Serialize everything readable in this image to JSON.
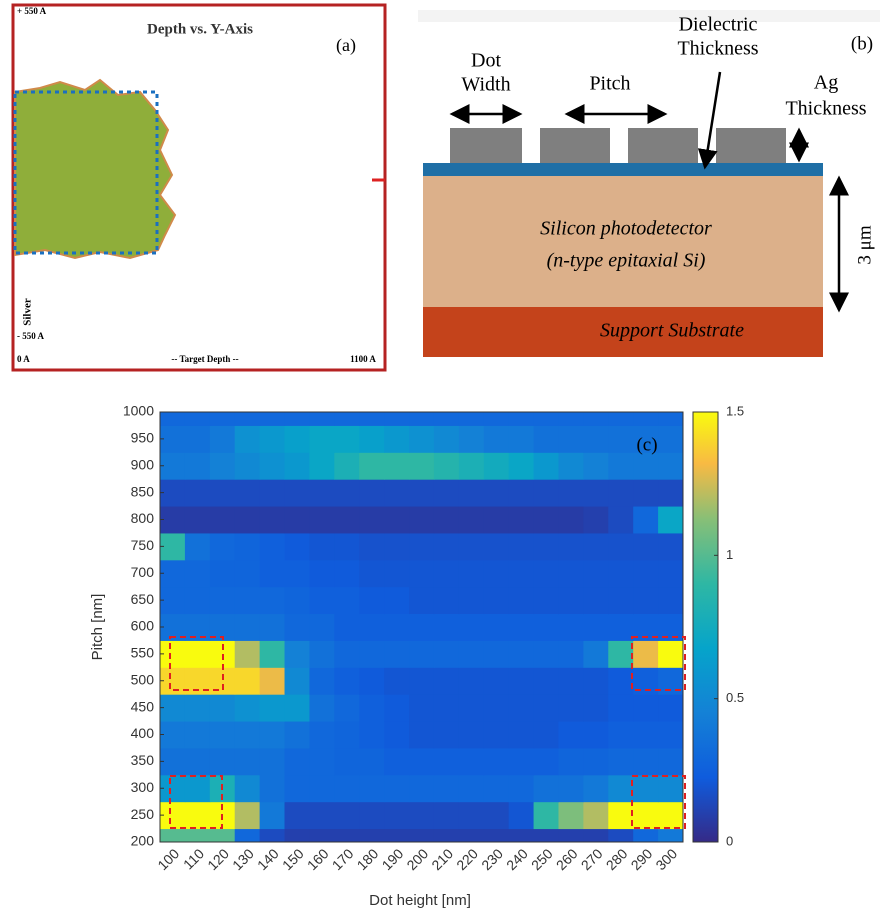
{
  "panel_a": {
    "top_label": "+ 550 A",
    "title": "Depth vs. Y-Axis",
    "panel_label": "(a)",
    "side_label": "Silver",
    "bottom_left_label": "- 550 A",
    "x_start": "0 A",
    "x_label": "-- Target Depth --",
    "x_end": "1100 A"
  },
  "panel_b": {
    "dot_width": [
      "Dot",
      "Width"
    ],
    "pitch": "Pitch",
    "dielectric_thickness": [
      "Dielectric",
      "Thickness"
    ],
    "ag_thickness": [
      "Ag",
      "Thickness"
    ],
    "panel_label": "(b)",
    "silicon": [
      "Silicon photodetector",
      "(n-type epitaxial Si)"
    ],
    "height": "3 μm",
    "substrate": "Support Substrate"
  },
  "chart_data": {
    "type": "heatmap",
    "panel_label": "(c)",
    "xlabel": "Dot height [nm]",
    "ylabel": "Pitch [nm]",
    "x": [
      100,
      110,
      120,
      130,
      140,
      150,
      160,
      170,
      180,
      190,
      200,
      210,
      220,
      230,
      240,
      250,
      260,
      270,
      280,
      290,
      300
    ],
    "y": [
      200,
      250,
      300,
      350,
      400,
      450,
      500,
      550,
      600,
      650,
      700,
      750,
      800,
      850,
      900,
      950,
      1000
    ],
    "values": [
      [
        1.0,
        1.0,
        1.0,
        0.3,
        0.15,
        0.1,
        0.1,
        0.1,
        0.1,
        0.1,
        0.1,
        0.1,
        0.1,
        0.1,
        0.1,
        0.1,
        0.1,
        0.1,
        0.15,
        0.3,
        0.4
      ],
      [
        1.5,
        1.5,
        1.5,
        1.2,
        0.4,
        0.15,
        0.15,
        0.15,
        0.15,
        0.15,
        0.15,
        0.15,
        0.15,
        0.15,
        0.2,
        0.9,
        1.1,
        1.2,
        1.5,
        1.5,
        1.5
      ],
      [
        0.6,
        0.6,
        0.8,
        0.5,
        0.35,
        0.3,
        0.3,
        0.3,
        0.3,
        0.3,
        0.3,
        0.3,
        0.3,
        0.3,
        0.3,
        0.35,
        0.35,
        0.4,
        0.5,
        0.5,
        0.5
      ],
      [
        0.35,
        0.35,
        0.35,
        0.35,
        0.35,
        0.3,
        0.3,
        0.28,
        0.28,
        0.25,
        0.25,
        0.25,
        0.25,
        0.25,
        0.25,
        0.25,
        0.28,
        0.28,
        0.3,
        0.3,
        0.3
      ],
      [
        0.4,
        0.4,
        0.4,
        0.4,
        0.4,
        0.35,
        0.3,
        0.28,
        0.25,
        0.22,
        0.2,
        0.2,
        0.2,
        0.2,
        0.2,
        0.2,
        0.22,
        0.22,
        0.25,
        0.25,
        0.25
      ],
      [
        0.5,
        0.5,
        0.5,
        0.55,
        0.6,
        0.6,
        0.35,
        0.3,
        0.25,
        0.22,
        0.2,
        0.2,
        0.2,
        0.2,
        0.2,
        0.2,
        0.2,
        0.2,
        0.22,
        0.22,
        0.22
      ],
      [
        1.4,
        1.4,
        1.4,
        1.4,
        1.3,
        0.5,
        0.3,
        0.25,
        0.22,
        0.2,
        0.2,
        0.2,
        0.2,
        0.2,
        0.2,
        0.2,
        0.2,
        0.2,
        0.22,
        0.25,
        0.3
      ],
      [
        1.5,
        1.5,
        1.5,
        1.2,
        0.9,
        0.45,
        0.35,
        0.3,
        0.3,
        0.3,
        0.3,
        0.3,
        0.3,
        0.3,
        0.3,
        0.3,
        0.3,
        0.4,
        0.9,
        1.3,
        1.5
      ],
      [
        0.35,
        0.35,
        0.35,
        0.35,
        0.35,
        0.3,
        0.3,
        0.25,
        0.25,
        0.25,
        0.25,
        0.25,
        0.25,
        0.25,
        0.25,
        0.25,
        0.25,
        0.25,
        0.25,
        0.25,
        0.25
      ],
      [
        0.3,
        0.3,
        0.3,
        0.3,
        0.3,
        0.28,
        0.25,
        0.25,
        0.22,
        0.22,
        0.2,
        0.2,
        0.2,
        0.2,
        0.2,
        0.2,
        0.2,
        0.2,
        0.2,
        0.2,
        0.2
      ],
      [
        0.3,
        0.3,
        0.28,
        0.28,
        0.25,
        0.25,
        0.22,
        0.22,
        0.2,
        0.2,
        0.2,
        0.2,
        0.2,
        0.2,
        0.2,
        0.2,
        0.2,
        0.2,
        0.2,
        0.2,
        0.2
      ],
      [
        0.9,
        0.35,
        0.3,
        0.28,
        0.25,
        0.22,
        0.2,
        0.2,
        0.18,
        0.18,
        0.18,
        0.18,
        0.18,
        0.18,
        0.18,
        0.18,
        0.18,
        0.18,
        0.18,
        0.18,
        0.18
      ],
      [
        0.08,
        0.08,
        0.08,
        0.08,
        0.08,
        0.08,
        0.08,
        0.08,
        0.08,
        0.08,
        0.08,
        0.08,
        0.08,
        0.08,
        0.08,
        0.08,
        0.08,
        0.1,
        0.15,
        0.3,
        0.7
      ],
      [
        0.15,
        0.15,
        0.15,
        0.15,
        0.15,
        0.15,
        0.15,
        0.15,
        0.15,
        0.15,
        0.15,
        0.15,
        0.15,
        0.15,
        0.15,
        0.15,
        0.15,
        0.15,
        0.15,
        0.15,
        0.15
      ],
      [
        0.4,
        0.4,
        0.45,
        0.5,
        0.55,
        0.6,
        0.7,
        0.8,
        0.9,
        0.9,
        0.9,
        0.85,
        0.8,
        0.75,
        0.7,
        0.6,
        0.5,
        0.45,
        0.4,
        0.4,
        0.4
      ],
      [
        0.35,
        0.35,
        0.4,
        0.55,
        0.6,
        0.65,
        0.7,
        0.7,
        0.65,
        0.6,
        0.55,
        0.5,
        0.45,
        0.4,
        0.4,
        0.35,
        0.35,
        0.35,
        0.35,
        0.35,
        0.35
      ],
      [
        0.3,
        0.3,
        0.3,
        0.3,
        0.3,
        0.3,
        0.3,
        0.3,
        0.3,
        0.3,
        0.3,
        0.3,
        0.3,
        0.3,
        0.3,
        0.3,
        0.3,
        0.3,
        0.3,
        0.3,
        0.3
      ]
    ],
    "ylim": [
      200,
      1000
    ],
    "yticks": [
      200,
      250,
      300,
      350,
      400,
      450,
      500,
      550,
      600,
      650,
      700,
      750,
      800,
      850,
      900,
      950,
      1000
    ],
    "zlim": [
      0,
      1.5
    ],
    "zticks": [
      0,
      0.5,
      1,
      1.5
    ],
    "colormap": "parula"
  }
}
